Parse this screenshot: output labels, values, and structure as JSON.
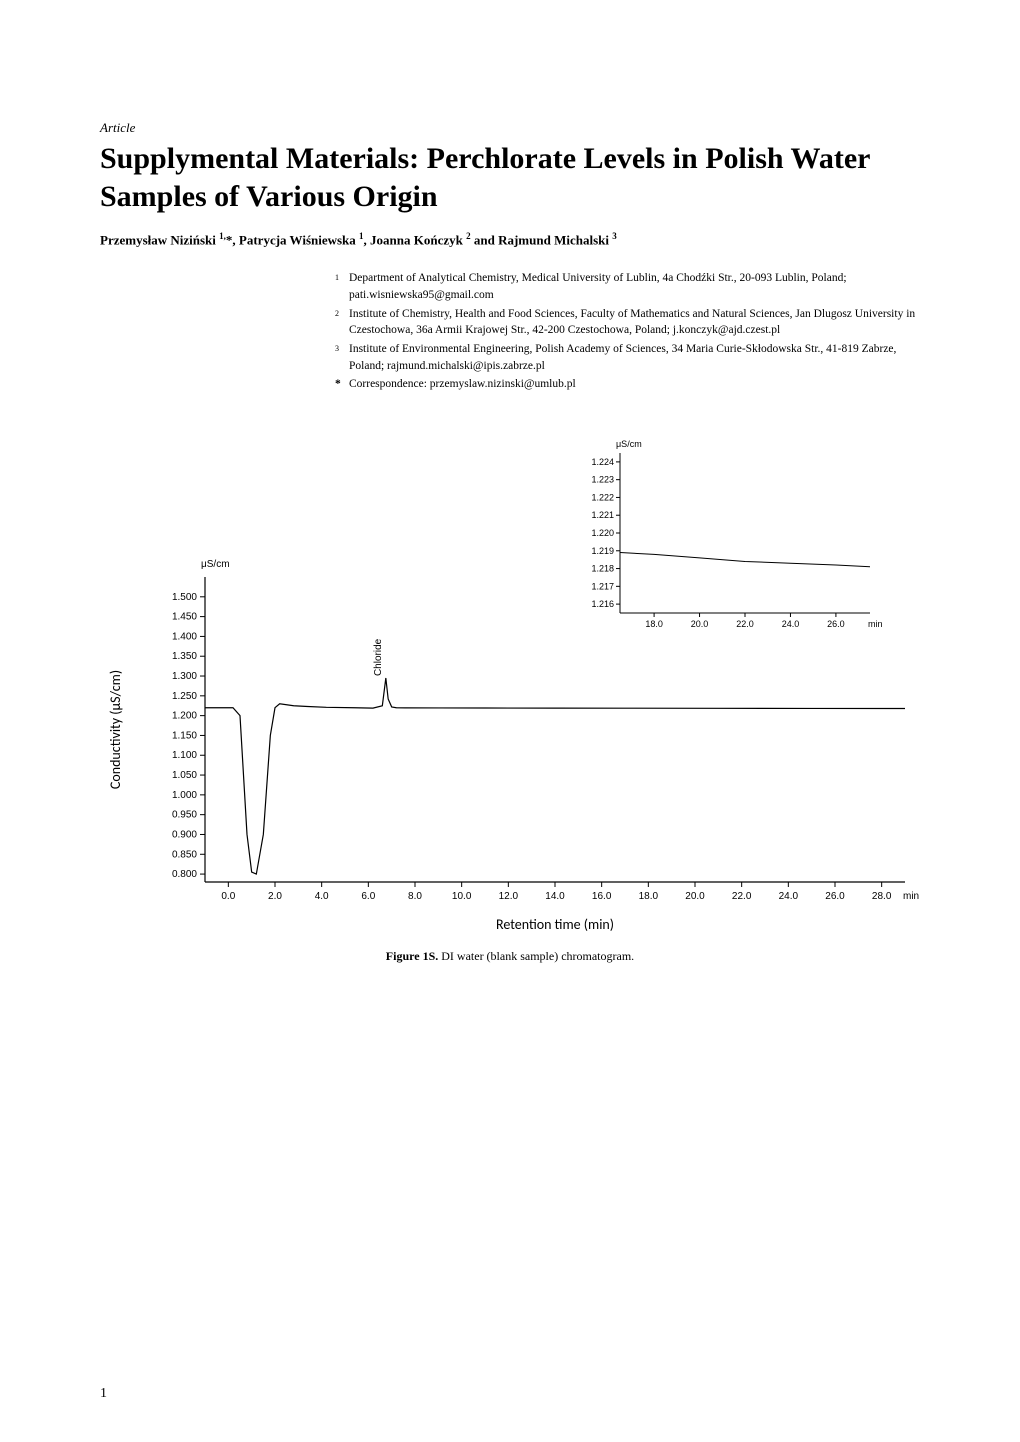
{
  "header": {
    "article_type": "Article",
    "title": "Supplymental Materials: Perchlorate Levels in Polish Water Samples of Various Origin",
    "authors_html": "Przemysław Niziński <sup>1,</sup>*, Patrycja Wiśniewska <sup>1</sup>, Joanna Kończyk <sup>2</sup> and Rajmund Michalski <sup>3</sup>"
  },
  "affiliations": [
    {
      "num": "1",
      "text": "Department of Analytical Chemistry, Medical University of Lublin, 4a Chodźki Str., 20-093 Lublin, Poland; pati.wisniewska95@gmail.com"
    },
    {
      "num": "2",
      "text": "Institute of Chemistry, Health and Food Sciences, Faculty of Mathematics and Natural Sciences, Jan Dlugosz University in Czestochowa, 36a Armii Krajowej Str., 42-200 Czestochowa, Poland; j.konczyk@ajd.czest.pl"
    },
    {
      "num": "3",
      "text": "Institute of Environmental Engineering, Polish Academy of Sciences, 34 Maria Curie-Skłodowska Str., 41-819 Zabrze, Poland; rajmund.michalski@ipis.zabrze.pl"
    }
  ],
  "correspondence": {
    "star": "*",
    "text": "Correspondence: przemyslaw.nizinski@umlub.pl"
  },
  "figure": {
    "caption_label": "Figure 1S.",
    "caption_text": " DI water (blank sample) chromatogram.",
    "main_chart": {
      "type": "line",
      "y_label": "Conductivity (μS/cm)",
      "y_unit_label": "μS/cm",
      "x_label": "Retention time (min)",
      "x_unit_label": "min",
      "xlim": [
        -1,
        29
      ],
      "ylim": [
        0.78,
        1.55
      ],
      "x_ticks": [
        0.0,
        2.0,
        4.0,
        6.0,
        8.0,
        10.0,
        12.0,
        14.0,
        16.0,
        18.0,
        20.0,
        22.0,
        24.0,
        26.0,
        28.0
      ],
      "x_tick_labels": [
        "0.0",
        "2.0",
        "4.0",
        "6.0",
        "8.0",
        "10.0",
        "12.0",
        "14.0",
        "16.0",
        "18.0",
        "20.0",
        "22.0",
        "24.0",
        "26.0",
        "28.0"
      ],
      "y_ticks": [
        0.8,
        0.85,
        0.9,
        0.95,
        1.0,
        1.05,
        1.1,
        1.15,
        1.2,
        1.25,
        1.3,
        1.35,
        1.4,
        1.45,
        1.5
      ],
      "y_tick_labels": [
        "0.800",
        "0.850",
        "0.900",
        "0.950",
        "1.000",
        "1.050",
        "1.100",
        "1.150",
        "1.200",
        "1.250",
        "1.300",
        "1.350",
        "1.400",
        "1.450",
        "1.500"
      ],
      "line_color": "#000000",
      "line_width": 1.2,
      "axis_color": "#000000",
      "tick_fontsize": 10,
      "label_fontsize": 14,
      "unit_fontsize": 10,
      "peak_label": "Chloride",
      "series": [
        [
          -1.0,
          1.22
        ],
        [
          0.2,
          1.22
        ],
        [
          0.5,
          1.2
        ],
        [
          0.8,
          0.9
        ],
        [
          1.0,
          0.805
        ],
        [
          1.2,
          0.8
        ],
        [
          1.5,
          0.9
        ],
        [
          1.8,
          1.15
        ],
        [
          2.0,
          1.22
        ],
        [
          2.2,
          1.23
        ],
        [
          2.8,
          1.225
        ],
        [
          3.4,
          1.223
        ],
        [
          4.2,
          1.221
        ],
        [
          5.4,
          1.22
        ],
        [
          6.2,
          1.219
        ],
        [
          6.6,
          1.225
        ],
        [
          6.75,
          1.295
        ],
        [
          6.85,
          1.242
        ],
        [
          7.0,
          1.222
        ],
        [
          7.2,
          1.22
        ],
        [
          7.6,
          1.2195
        ],
        [
          9.0,
          1.2194
        ],
        [
          11.0,
          1.2192
        ],
        [
          14.0,
          1.219
        ],
        [
          17.0,
          1.2188
        ],
        [
          21.0,
          1.2185
        ],
        [
          25.0,
          1.2182
        ],
        [
          29.0,
          1.218
        ]
      ]
    },
    "inset_chart": {
      "type": "line",
      "y_unit_label": "μS/cm",
      "x_unit_label": "min",
      "xlim": [
        16.5,
        27.5
      ],
      "ylim": [
        1.2155,
        1.2245
      ],
      "x_ticks": [
        18.0,
        20.0,
        22.0,
        24.0,
        26.0
      ],
      "x_tick_labels": [
        "18.0",
        "20.0",
        "22.0",
        "24.0",
        "26.0"
      ],
      "y_ticks": [
        1.216,
        1.217,
        1.218,
        1.219,
        1.22,
        1.221,
        1.222,
        1.223,
        1.224
      ],
      "y_tick_labels": [
        "1.216",
        "1.217",
        "1.218",
        "1.219",
        "1.220",
        "1.221",
        "1.222",
        "1.223",
        "1.224"
      ],
      "line_color": "#000000",
      "line_width": 1.0,
      "axis_color": "#000000",
      "tick_fontsize": 9,
      "unit_fontsize": 9,
      "series": [
        [
          16.5,
          1.2189
        ],
        [
          18.0,
          1.2188
        ],
        [
          20.0,
          1.2186
        ],
        [
          22.0,
          1.2184
        ],
        [
          24.0,
          1.2183
        ],
        [
          26.0,
          1.2182
        ],
        [
          27.5,
          1.2181
        ]
      ]
    }
  },
  "page_number": "1"
}
